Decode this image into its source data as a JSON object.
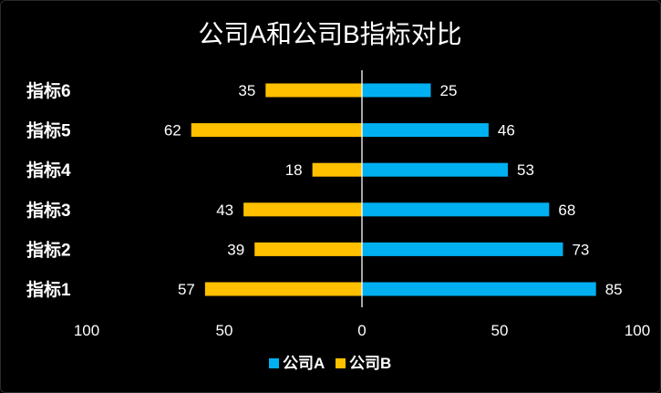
{
  "chart_data": {
    "type": "bar",
    "orientation": "horizontal-butterfly",
    "title": "公司A和公司B指标对比",
    "categories": [
      "指标1",
      "指标2",
      "指标3",
      "指标4",
      "指标5",
      "指标6"
    ],
    "series": [
      {
        "name": "公司A",
        "values": [
          85,
          73,
          68,
          53,
          46,
          25
        ],
        "color": "#00B0F0",
        "side": "right"
      },
      {
        "name": "公司B",
        "values": [
          57,
          39,
          43,
          18,
          62,
          35
        ],
        "color": "#FFC000",
        "side": "left"
      }
    ],
    "xlim": [
      -100,
      100
    ],
    "x_ticks": [
      "100",
      "50",
      "0",
      "50",
      "100"
    ],
    "grid": false,
    "legend_position": "bottom",
    "data_labels": true
  }
}
